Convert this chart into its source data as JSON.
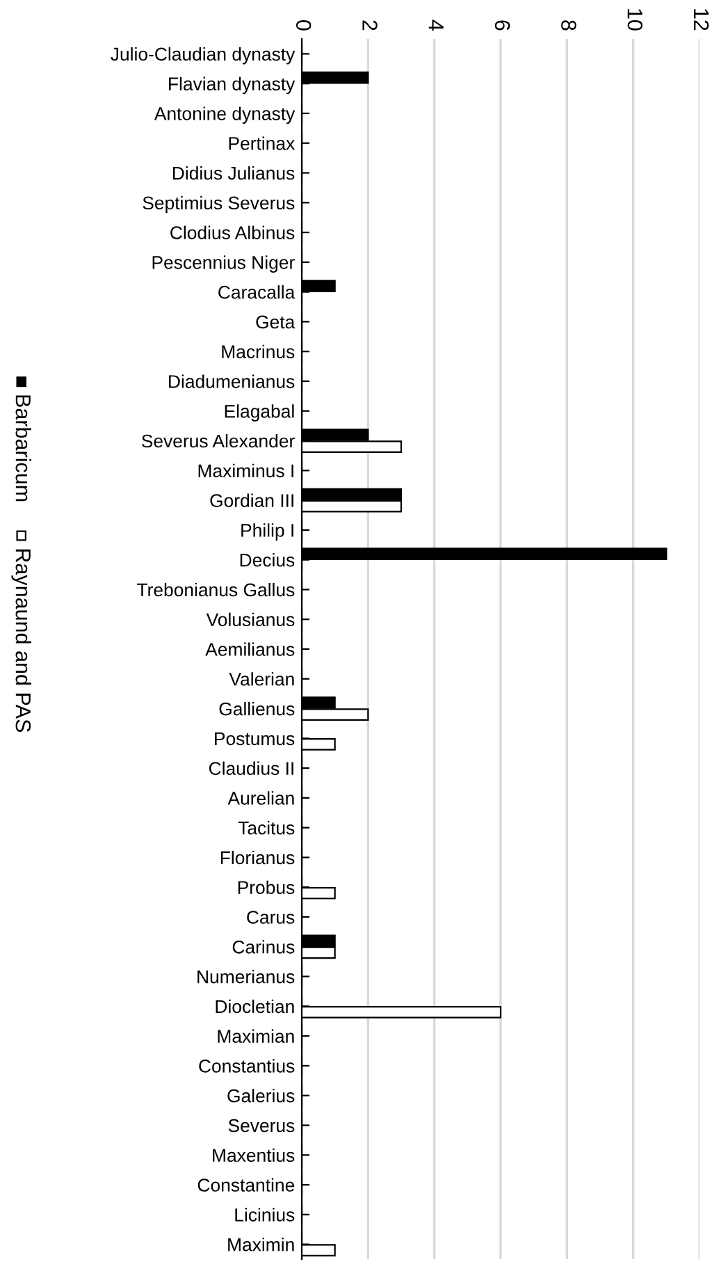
{
  "chart_data": {
    "type": "bar",
    "orientation": "horizontal",
    "categories": [
      "Julio-Claudian dynasty",
      "Flavian dynasty",
      "Antonine dynasty",
      "Pertinax",
      "Didius Julianus",
      "Septimius Severus",
      "Clodius Albinus",
      "Pescennius Niger",
      "Caracalla",
      "Geta",
      "Macrinus",
      "Diadumenianus",
      "Elagabal",
      "Severus Alexander",
      "Maximinus I",
      "Gordian III",
      "Philip I",
      "Decius",
      "Trebonianus Gallus",
      "Volusianus",
      "Aemilianus",
      "Valerian",
      "Gallienus",
      "Postumus",
      "Claudius II",
      "Aurelian",
      "Tacitus",
      "Florianus",
      "Probus",
      "Carus",
      "Carinus",
      "Numerianus",
      "Diocletian",
      "Maximian",
      "Constantius",
      "Galerius",
      "Severus",
      "Maxentius",
      "Constantine",
      "Licinius",
      "Maximin"
    ],
    "series": [
      {
        "name": "Barbaricum",
        "color": "#000000",
        "values": [
          0,
          2,
          0,
          0,
          0,
          0,
          0,
          0,
          1,
          0,
          0,
          0,
          0,
          2,
          0,
          3,
          0,
          11,
          0,
          0,
          0,
          0,
          1,
          0,
          0,
          0,
          0,
          0,
          0,
          0,
          1,
          0,
          0,
          0,
          0,
          0,
          0,
          0,
          0,
          0,
          0
        ]
      },
      {
        "name": "Raynaund and PAS",
        "color": "#ffffff",
        "values": [
          0,
          0,
          0,
          0,
          0,
          0,
          0,
          0,
          0,
          0,
          0,
          0,
          0,
          3,
          0,
          3,
          0,
          0,
          0,
          0,
          0,
          0,
          2,
          1,
          0,
          0,
          0,
          0,
          1,
          0,
          1,
          0,
          6,
          0,
          0,
          0,
          0,
          0,
          0,
          0,
          1
        ]
      }
    ],
    "xlim": [
      0,
      12
    ],
    "xticks": [
      0,
      2,
      4,
      6,
      8,
      10,
      12
    ],
    "grid": "x",
    "legend": "left"
  }
}
